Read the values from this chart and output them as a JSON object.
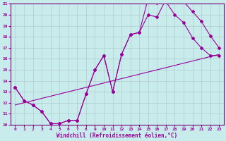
{
  "xlabel": "Windchill (Refroidissement éolien,°C)",
  "bg_color": "#c8ecec",
  "grid_color": "#b0cccc",
  "line_color": "#990099",
  "spine_color": "#770077",
  "xlim": [
    -0.5,
    23.5
  ],
  "ylim": [
    10,
    21
  ],
  "xticks": [
    0,
    1,
    2,
    3,
    4,
    5,
    6,
    7,
    8,
    9,
    10,
    11,
    12,
    13,
    14,
    15,
    16,
    17,
    18,
    19,
    20,
    21,
    22,
    23
  ],
  "yticks": [
    10,
    11,
    12,
    13,
    14,
    15,
    16,
    17,
    18,
    19,
    20,
    21
  ],
  "line1_x": [
    0,
    1,
    2,
    3,
    4,
    5,
    6,
    7,
    8,
    9,
    10,
    11,
    12,
    13,
    14,
    15,
    16,
    17,
    18,
    19,
    20,
    21,
    22,
    23
  ],
  "line1_y": [
    13.4,
    12.2,
    11.8,
    11.2,
    10.1,
    10.1,
    10.4,
    10.4,
    12.8,
    15.0,
    16.3,
    13.0,
    16.4,
    18.2,
    18.4,
    20.0,
    19.8,
    21.4,
    21.3,
    21.2,
    20.3,
    19.4,
    18.1,
    17.0
  ],
  "line2_x": [
    0,
    1,
    2,
    3,
    4,
    5,
    6,
    7,
    8,
    9,
    10,
    11,
    12,
    13,
    14,
    15,
    16,
    17,
    18,
    19,
    20,
    21,
    22,
    23
  ],
  "line2_y": [
    13.4,
    12.2,
    11.8,
    11.2,
    10.1,
    10.1,
    10.4,
    10.4,
    12.8,
    15.0,
    16.3,
    13.0,
    16.4,
    18.2,
    18.4,
    21.5,
    21.1,
    21.2,
    20.0,
    19.3,
    17.9,
    17.0,
    16.3,
    16.3
  ],
  "line3_x": [
    0,
    23
  ],
  "line3_y": [
    11.8,
    16.4
  ]
}
